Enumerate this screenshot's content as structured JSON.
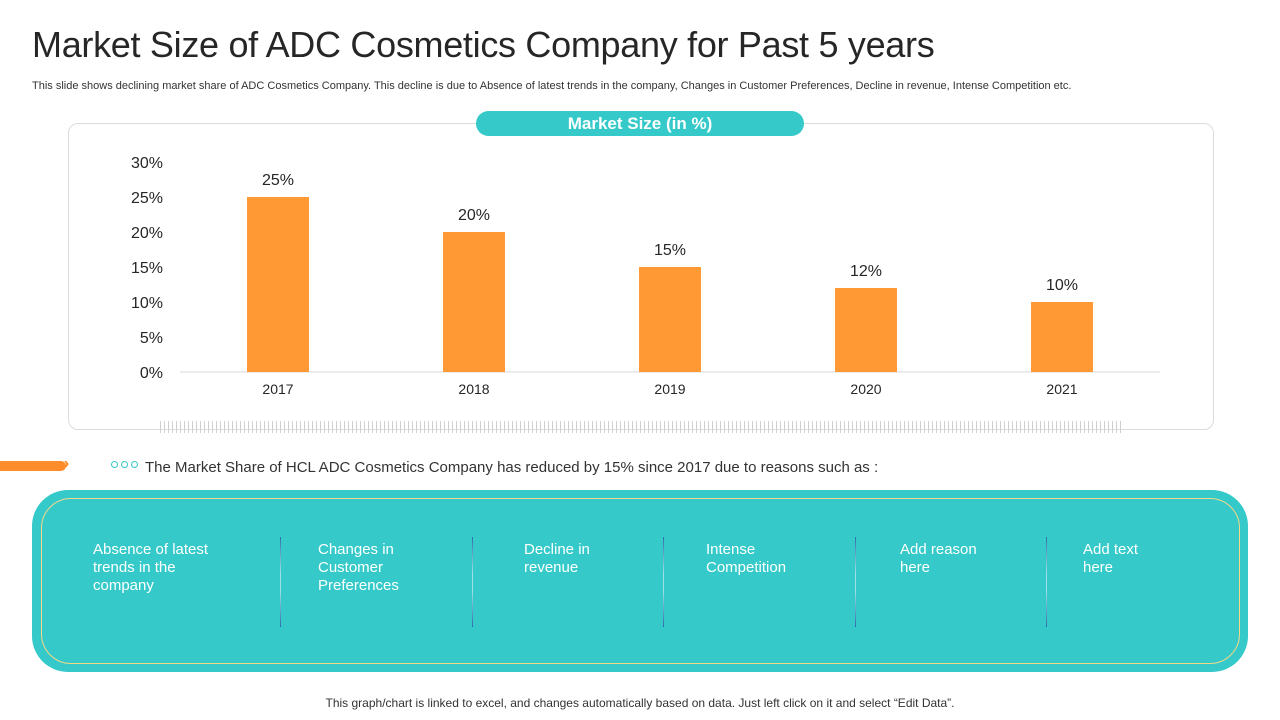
{
  "header": {
    "title": "Market Size of ADC Cosmetics Company for Past 5 years",
    "subtitle": "This slide shows declining market share of ADC Cosmetics Company. This decline is due to Absence of latest trends in the company, Changes in Customer Preferences, Decline in revenue, Intense Competition etc."
  },
  "chart_data": {
    "type": "bar",
    "title": "Market Size (in %)",
    "categories": [
      "2017",
      "2018",
      "2019",
      "2020",
      "2021"
    ],
    "values": [
      25,
      20,
      15,
      12,
      10
    ],
    "data_labels": [
      "25%",
      "20%",
      "15%",
      "12%",
      "10%"
    ],
    "ylim": [
      0,
      30
    ],
    "yticks": [
      "0%",
      "5%",
      "10%",
      "15%",
      "20%",
      "25%",
      "30%"
    ],
    "bar_color": "#ff9933",
    "grid": false,
    "legend": "none"
  },
  "statement": "The Market Share of HCL ADC Cosmetics Company has reduced by 15% since 2017 due to reasons such as :",
  "reasons": [
    "Absence of latest trends in the company",
    "Changes in Customer Preferences",
    "Decline in revenue",
    "Intense Competition",
    "Add reason here",
    "Add text here"
  ],
  "footer": "This graph/chart is linked to excel, and changes automatically based on data. Just left click on it and select “Edit Data”.",
  "colors": {
    "accent": "#35c9c9",
    "orange": "#ff8c2a"
  }
}
